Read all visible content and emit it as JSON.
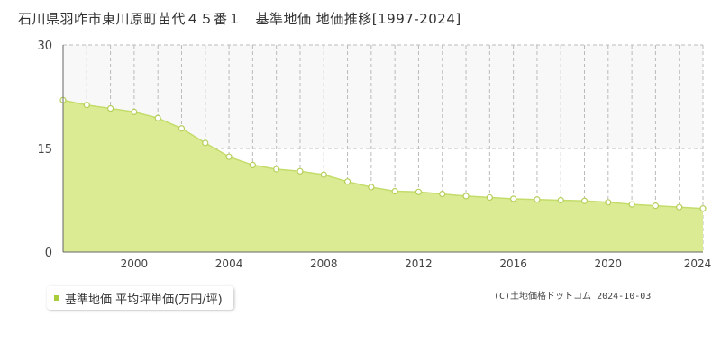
{
  "title": "石川県羽咋市東川原町苗代４５番１　基準地価 地価推移[1997-2024]",
  "copyright": "(C)土地価格ドットコム 2024-10-03",
  "colors": {
    "fill": "#dbeb94",
    "line": "#c3dc6a",
    "point_fill": "#ffffff",
    "point_stroke": "#b5cf5a",
    "grid": "#bbbbbb",
    "upper_band": "#f8f8f8",
    "legend_swatch": "#a8cc3c"
  },
  "legend": {
    "label": "基準地価 平均坪単価(万円/坪)"
  },
  "chart_data": {
    "type": "area",
    "title": "石川県羽咋市東川原町苗代４５番１　基準地価 地価推移[1997-2024]",
    "series": [
      {
        "name": "基準地価 平均坪単価(万円/坪)",
        "x": [
          1997,
          1998,
          1999,
          2000,
          2001,
          2002,
          2003,
          2004,
          2005,
          2006,
          2007,
          2008,
          2009,
          2010,
          2011,
          2012,
          2013,
          2014,
          2015,
          2016,
          2017,
          2018,
          2019,
          2020,
          2021,
          2022,
          2023,
          2024
        ],
        "values": [
          22.0,
          21.3,
          20.8,
          20.3,
          19.4,
          17.9,
          15.8,
          13.8,
          12.6,
          12.0,
          11.7,
          11.2,
          10.2,
          9.4,
          8.8,
          8.7,
          8.4,
          8.1,
          7.9,
          7.7,
          7.6,
          7.5,
          7.4,
          7.2,
          6.9,
          6.7,
          6.5,
          6.3
        ]
      }
    ],
    "xlim": [
      1997,
      2024
    ],
    "ylim": [
      0,
      30
    ],
    "yticks": [
      0,
      15,
      30
    ],
    "xticks": [
      2000,
      2004,
      2008,
      2012,
      2016,
      2020,
      2024
    ],
    "legend_position": "bottom-left",
    "grid": true
  }
}
